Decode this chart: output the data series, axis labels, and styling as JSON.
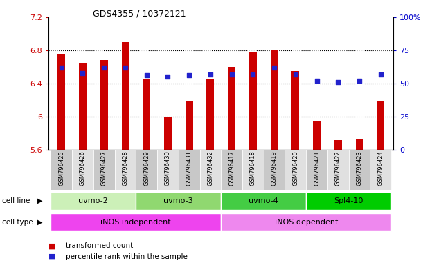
{
  "title": "GDS4355 / 10372121",
  "samples": [
    "GSM796425",
    "GSM796426",
    "GSM796427",
    "GSM796428",
    "GSM796429",
    "GSM796430",
    "GSM796431",
    "GSM796432",
    "GSM796417",
    "GSM796418",
    "GSM796419",
    "GSM796420",
    "GSM796421",
    "GSM796422",
    "GSM796423",
    "GSM796424"
  ],
  "transformed_counts": [
    6.76,
    6.64,
    6.68,
    6.9,
    6.46,
    5.99,
    6.19,
    6.45,
    6.6,
    6.78,
    6.81,
    6.55,
    5.95,
    5.72,
    5.73,
    6.18
  ],
  "percentile_ranks": [
    62,
    58,
    62,
    62,
    56,
    55,
    56,
    57,
    57,
    57,
    62,
    57,
    52,
    51,
    52,
    57
  ],
  "bar_color": "#cc0000",
  "dot_color": "#2222cc",
  "ylim_left": [
    5.6,
    7.2
  ],
  "ylim_right": [
    0,
    100
  ],
  "yticks_left": [
    5.6,
    6.0,
    6.4,
    6.8,
    7.2
  ],
  "yticks_right": [
    0,
    25,
    50,
    75,
    100
  ],
  "ytick_labels_left": [
    "5.6",
    "6",
    "6.4",
    "6.8",
    "7.2"
  ],
  "ytick_labels_right": [
    "0",
    "25",
    "50",
    "75",
    "100%"
  ],
  "cell_line_groups": [
    {
      "label": "uvmo-2",
      "start": 0,
      "end": 3,
      "color": "#ccf0b8"
    },
    {
      "label": "uvmo-3",
      "start": 4,
      "end": 7,
      "color": "#90d870"
    },
    {
      "label": "uvmo-4",
      "start": 8,
      "end": 11,
      "color": "#44cc44"
    },
    {
      "label": "Spl4-10",
      "start": 12,
      "end": 15,
      "color": "#00cc00"
    }
  ],
  "cell_type_groups": [
    {
      "label": "iNOS independent",
      "start": 0,
      "end": 7,
      "color": "#ee44ee"
    },
    {
      "label": "iNOS dependent",
      "start": 8,
      "end": 15,
      "color": "#ee88ee"
    }
  ],
  "legend_items": [
    {
      "label": "transformed count",
      "color": "#cc0000"
    },
    {
      "label": "percentile rank within the sample",
      "color": "#2222cc"
    }
  ],
  "bar_width": 0.35,
  "dot_size": 25,
  "grid_color": "#000000"
}
